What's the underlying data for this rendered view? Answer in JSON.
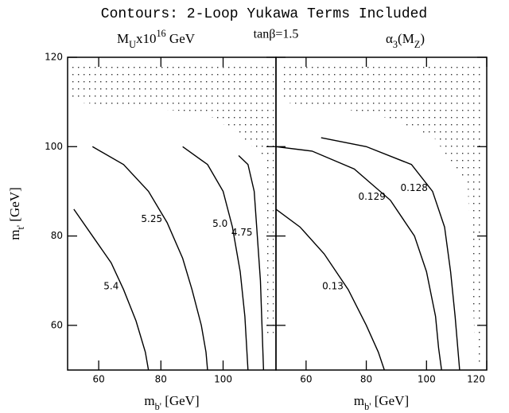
{
  "title": "Contours: 2-Loop Yukawa Terms Included",
  "subtitle": "tanβ=1.5",
  "chart_data": [
    {
      "type": "contour",
      "title": [
        "M",
        "U",
        "x10",
        "16",
        " GeV"
      ],
      "xlabel": [
        "m",
        "b'",
        " [GeV]"
      ],
      "ylabel": [
        "m",
        "t'",
        " [GeV]"
      ],
      "xlim": [
        50,
        117
      ],
      "ylim": [
        50,
        120
      ],
      "xticks": [
        60,
        80,
        100
      ],
      "yticks": [
        60,
        80,
        100,
        120
      ],
      "color": "#000000",
      "series": [
        {
          "name": "5.4",
          "x": [
            52,
            58,
            64,
            68,
            72,
            75,
            76
          ],
          "y": [
            86,
            80,
            74,
            68,
            61,
            54,
            50
          ]
        },
        {
          "name": "5.25",
          "x": [
            58,
            68,
            76,
            82,
            87,
            90,
            93,
            94.5,
            95
          ],
          "y": [
            100,
            96,
            90,
            83,
            75,
            68,
            60,
            54,
            50
          ]
        },
        {
          "name": "5.0",
          "x": [
            87,
            95,
            100,
            103,
            105.5,
            107,
            108
          ],
          "y": [
            100,
            96,
            90,
            82,
            72,
            62,
            50
          ]
        },
        {
          "name": "4.75",
          "x": [
            105,
            108,
            110,
            111,
            112,
            112.5,
            113
          ],
          "y": [
            98,
            96,
            90,
            80,
            70,
            60,
            50
          ]
        }
      ]
    },
    {
      "type": "contour",
      "title": [
        "α",
        "3",
        "(M",
        "Z",
        ")"
      ],
      "xlabel": [
        "m",
        "b'",
        " [GeV]"
      ],
      "xlim": [
        50,
        120
      ],
      "ylim": [
        50,
        120
      ],
      "xticks": [
        60,
        80,
        100,
        120
      ],
      "yticks": [
        60,
        80,
        100,
        120
      ],
      "color": "#000000",
      "series": [
        {
          "name": "0.13",
          "x": [
            50,
            58,
            66,
            74,
            80,
            84,
            86
          ],
          "y": [
            86,
            82,
            76,
            68,
            60,
            54,
            50
          ]
        },
        {
          "name": "0.129",
          "x": [
            50,
            62,
            76,
            88,
            96,
            100,
            103,
            104,
            105
          ],
          "y": [
            100,
            99,
            95,
            88,
            80,
            72,
            62,
            55,
            50
          ]
        },
        {
          "name": "0.128",
          "x": [
            65,
            80,
            95,
            102,
            106,
            108,
            109.5,
            111
          ],
          "y": [
            102,
            100,
            96,
            90,
            82,
            72,
            62,
            50
          ]
        }
      ]
    }
  ]
}
